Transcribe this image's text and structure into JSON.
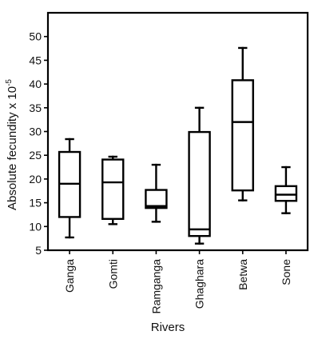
{
  "chart_data": {
    "type": "boxplot",
    "xlabel": "Rivers",
    "ylabel": "Absolute fecundity x 10",
    "ylabel_exponent": "-5",
    "ylim": [
      5,
      55
    ],
    "yticks": [
      5,
      10,
      15,
      20,
      25,
      30,
      35,
      40,
      45,
      50
    ],
    "grid": false,
    "categories": [
      "Ganga",
      "Gomti",
      "Ramganga",
      "Ghaghara",
      "Betwa",
      "Sone"
    ],
    "series": [
      {
        "category": "Ganga",
        "min": 7.7,
        "q1": 12.0,
        "median": 19.0,
        "q3": 25.7,
        "max": 28.4
      },
      {
        "category": "Gomti",
        "min": 10.5,
        "q1": 11.6,
        "median": 19.3,
        "q3": 24.1,
        "max": 24.7
      },
      {
        "category": "Ramganga",
        "min": 11.0,
        "q1": 13.9,
        "median": 14.3,
        "q3": 17.7,
        "max": 23.0
      },
      {
        "category": "Ghaghara",
        "min": 6.4,
        "q1": 8.0,
        "median": 9.4,
        "q3": 29.9,
        "max": 35.0
      },
      {
        "category": "Betwa",
        "min": 15.5,
        "q1": 17.6,
        "median": 32.0,
        "q3": 40.8,
        "max": 47.6
      },
      {
        "category": "Sone",
        "min": 12.8,
        "q1": 15.4,
        "median": 16.7,
        "q3": 18.5,
        "max": 22.5
      }
    ]
  }
}
